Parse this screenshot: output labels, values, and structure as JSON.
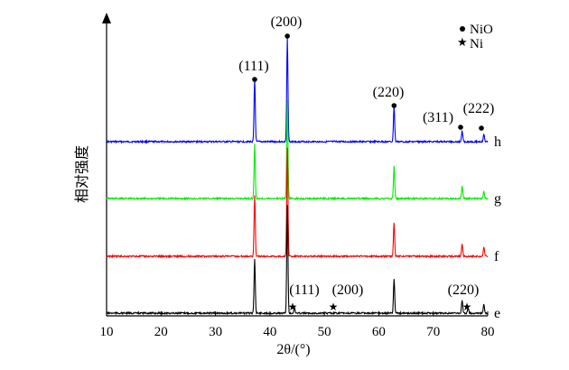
{
  "chart_data": {
    "type": "line",
    "xlabel": "2θ/(°)",
    "ylabel": "相对强度",
    "xlim": [
      10,
      80
    ],
    "xticks": [
      "10",
      "20",
      "30",
      "40",
      "50",
      "60",
      "70",
      "80"
    ],
    "legend": {
      "placement": "top-right",
      "entries": [
        {
          "marker": "dot",
          "label": "NiO"
        },
        {
          "marker": "star",
          "label": "Ni"
        }
      ]
    },
    "series": [
      {
        "name": "h",
        "color": "#0000ff",
        "peaks": [
          {
            "x": 37.2,
            "h": 70
          },
          {
            "x": 43.2,
            "h": 115
          },
          {
            "x": 62.8,
            "h": 40
          },
          {
            "x": 75.3,
            "h": 12
          },
          {
            "x": 79.3,
            "h": 8
          },
          {
            "x": 43.2,
            "h": 0
          }
        ]
      },
      {
        "name": "g",
        "color": "#00ee00",
        "peaks": [
          {
            "x": 37.2,
            "h": 60
          },
          {
            "x": 43.2,
            "h": 110
          },
          {
            "x": 62.8,
            "h": 36
          },
          {
            "x": 75.3,
            "h": 14
          },
          {
            "x": 79.3,
            "h": 8
          }
        ]
      },
      {
        "name": "f",
        "color": "#ff0000",
        "peaks": [
          {
            "x": 37.2,
            "h": 68
          },
          {
            "x": 43.2,
            "h": 120
          },
          {
            "x": 62.8,
            "h": 38
          },
          {
            "x": 75.3,
            "h": 14
          },
          {
            "x": 79.3,
            "h": 10
          }
        ]
      },
      {
        "name": "e",
        "color": "#000000",
        "peaks": [
          {
            "x": 37.2,
            "h": 60
          },
          {
            "x": 43.2,
            "h": 120
          },
          {
            "x": 44.5,
            "h": 6
          },
          {
            "x": 62.8,
            "h": 38
          },
          {
            "x": 75.3,
            "h": 14
          },
          {
            "x": 76.4,
            "h": 6
          },
          {
            "x": 79.3,
            "h": 10
          }
        ]
      }
    ],
    "annotations_nio": [
      {
        "label": "(111)",
        "x": 37.2
      },
      {
        "label": "(200)",
        "x": 43.2
      },
      {
        "label": "(220)",
        "x": 62.8
      },
      {
        "label": "(311)",
        "x": 75.3
      },
      {
        "label": "(222)",
        "x": 79.3
      }
    ],
    "annotations_ni": [
      {
        "label": "(111)",
        "x": 44.5
      },
      {
        "label": "(200)",
        "x": 51.8
      },
      {
        "label": "(220)",
        "x": 76.4
      }
    ]
  }
}
